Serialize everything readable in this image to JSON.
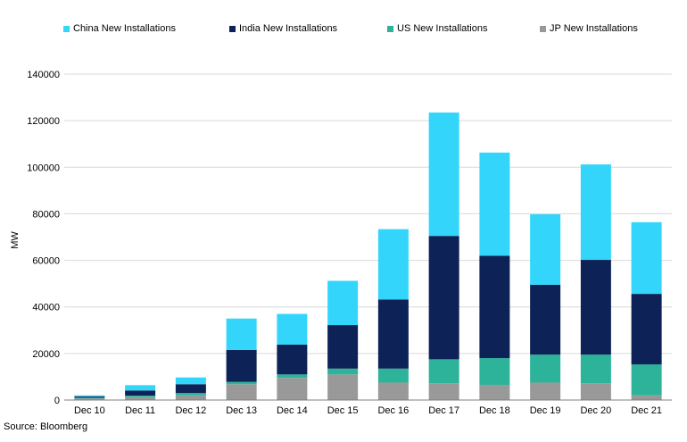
{
  "chart_data": {
    "type": "bar",
    "stacked": true,
    "title": "",
    "xlabel": "",
    "ylabel": "MW",
    "ylim": [
      0,
      140000
    ],
    "yticks": [
      0,
      20000,
      40000,
      60000,
      80000,
      100000,
      120000,
      140000
    ],
    "categories": [
      "Dec 10",
      "Dec 11",
      "Dec 12",
      "Dec 13",
      "Dec 14",
      "Dec 15",
      "Dec 16",
      "Dec 17",
      "Dec 18",
      "Dec 19",
      "Dec 20",
      "Dec 21"
    ],
    "series": [
      {
        "name": "JP New Installations",
        "color": "#999999",
        "values": [
          700,
          1300,
          2000,
          6800,
          9500,
          11000,
          7500,
          7200,
          6500,
          7500,
          7200,
          2000
        ]
      },
      {
        "name": "US New Installations",
        "color": "#2cb399",
        "values": [
          300,
          600,
          1000,
          1000,
          1500,
          2500,
          6000,
          10300,
          11500,
          12000,
          12300,
          13300
        ]
      },
      {
        "name": "India New Installations",
        "color": "#0d2256",
        "values": [
          500,
          2200,
          3800,
          13700,
          12800,
          18700,
          29700,
          53000,
          44000,
          30000,
          40700,
          30300
        ]
      },
      {
        "name": "China New Installations",
        "color": "#33d6fa",
        "values": [
          500,
          2300,
          2900,
          13500,
          13200,
          19000,
          30200,
          53000,
          44300,
          30300,
          41000,
          30800
        ]
      }
    ],
    "legend": {
      "position": "top",
      "order": [
        "China New Installations",
        "India New Installations",
        "US New Installations",
        "JP New Installations"
      ]
    },
    "grid": true
  },
  "source": "Source: Bloomberg"
}
